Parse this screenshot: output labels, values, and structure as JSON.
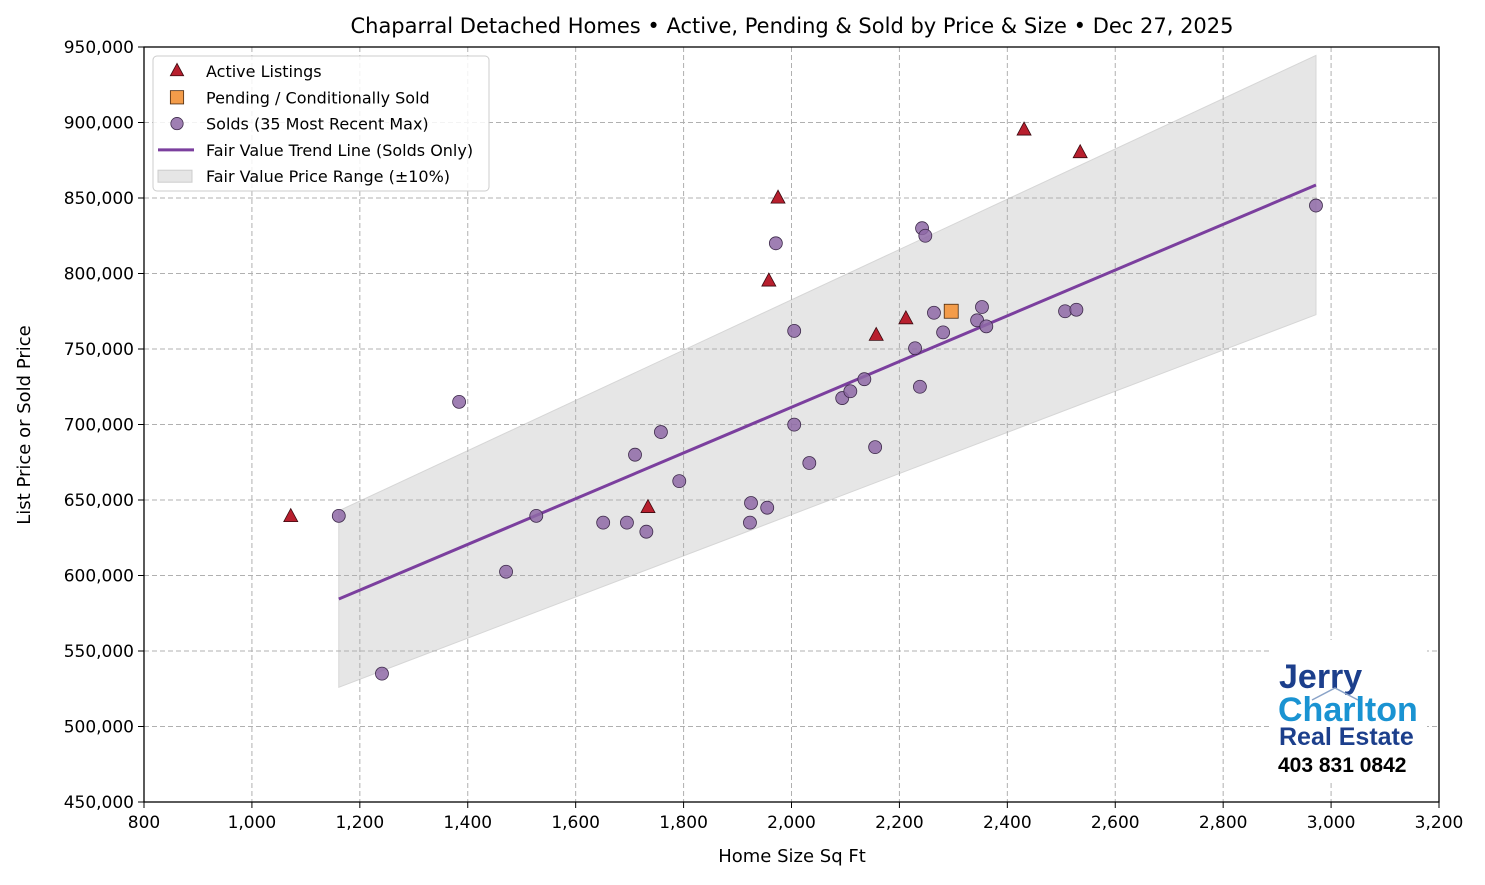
{
  "chart_data": {
    "type": "scatter",
    "title": "Chaparral Detached Homes • Active, Pending & Sold by Price & Size • Dec 27, 2025",
    "xlabel": "Home Size Sq Ft",
    "ylabel": "List Price or Sold Price",
    "xlim": [
      800,
      3200
    ],
    "ylim": [
      450000,
      950000
    ],
    "xticks": [
      "800",
      "1,000",
      "1,200",
      "1,400",
      "1,600",
      "1,800",
      "2,000",
      "2,200",
      "2,400",
      "2,600",
      "2,800",
      "3,000",
      "3,200"
    ],
    "xtick_values": [
      800,
      1000,
      1200,
      1400,
      1600,
      1800,
      2000,
      2200,
      2400,
      2600,
      2800,
      3000,
      3200
    ],
    "yticks": [
      "450,000",
      "500,000",
      "550,000",
      "600,000",
      "650,000",
      "700,000",
      "750,000",
      "800,000",
      "850,000",
      "900,000",
      "950,000"
    ],
    "ytick_values": [
      450000,
      500000,
      550000,
      600000,
      650000,
      700000,
      750000,
      800000,
      850000,
      900000,
      950000
    ],
    "grid": true,
    "legend_position": "top-left",
    "series": [
      {
        "name": "Active Listings",
        "marker": "triangle",
        "color": "#b81f2e",
        "points": [
          [
            1072,
            639000
          ],
          [
            1734,
            645000
          ],
          [
            1958,
            795000
          ],
          [
            1975,
            849900
          ],
          [
            2157,
            759000
          ],
          [
            2212,
            770000
          ],
          [
            2431,
            895000
          ],
          [
            2535,
            880000
          ]
        ]
      },
      {
        "name": "Pending / Conditionally Sold",
        "marker": "square",
        "color": "#f39c4a",
        "points": [
          [
            2296,
            775000
          ]
        ]
      },
      {
        "name": "Solds (35 Most Recent Max)",
        "marker": "circle",
        "color": "#8e68a6",
        "points": [
          [
            1161,
            639500
          ],
          [
            1241,
            535000
          ],
          [
            1384,
            715000
          ],
          [
            1471,
            602500
          ],
          [
            1527,
            639500
          ],
          [
            1651,
            635000
          ],
          [
            1695,
            635000
          ],
          [
            1710,
            680000
          ],
          [
            1731,
            629000
          ],
          [
            1758,
            695000
          ],
          [
            1792,
            662500
          ],
          [
            1923,
            635000
          ],
          [
            1925,
            648000
          ],
          [
            1955,
            644900
          ],
          [
            1971,
            820000
          ],
          [
            2005,
            762000
          ],
          [
            2005,
            699900
          ],
          [
            2033,
            674500
          ],
          [
            2094,
            717500
          ],
          [
            2109,
            722000
          ],
          [
            2135,
            730000
          ],
          [
            2155,
            685000
          ],
          [
            2229,
            750500
          ],
          [
            2238,
            725000
          ],
          [
            2242,
            830000
          ],
          [
            2248,
            825000
          ],
          [
            2264,
            774000
          ],
          [
            2281,
            761000
          ],
          [
            2344,
            769000
          ],
          [
            2353,
            777800
          ],
          [
            2361,
            765000
          ],
          [
            2507,
            775000
          ],
          [
            2528,
            776000
          ],
          [
            2972,
            845000
          ]
        ]
      }
    ],
    "trend_line": {
      "name": "Fair Value Trend Line (Solds Only)",
      "color": "#7b3f9e",
      "x": [
        1161,
        2972
      ],
      "y": [
        584400,
        858600
      ]
    },
    "band": {
      "name": "Fair Value Price Range (±10%)",
      "color": "#e6e6e6",
      "pct": 10
    }
  },
  "logo": {
    "line1": "Jerry",
    "line2": "Charlton",
    "line3": "Real Estate",
    "phone": "403 831 0842"
  }
}
